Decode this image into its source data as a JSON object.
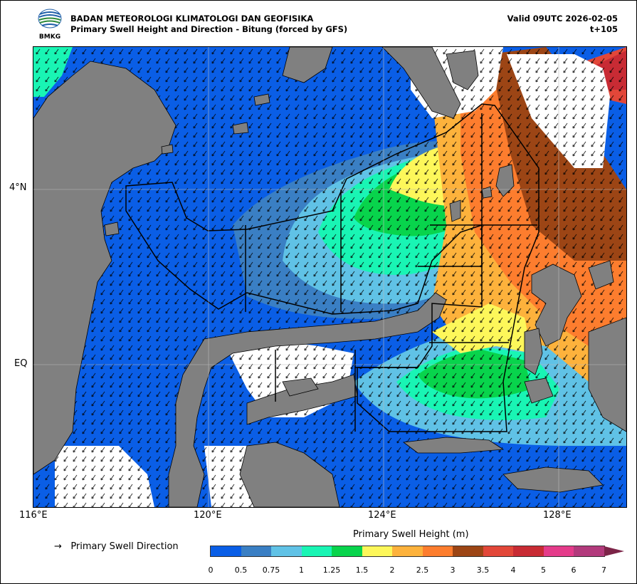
{
  "header": {
    "agency": "BADAN METEOROLOGI KLIMATOLOGI DAN GEOFISIKA",
    "subtitle": "Primary Swell Height and Direction - Bitung (forced by GFS)",
    "valid": "Valid 09UTC 2026-02-05",
    "lead": "t+105",
    "logo_text": "BMKG"
  },
  "axes": {
    "x_ticks": [
      "116°E",
      "120°E",
      "124°E",
      "128°E"
    ],
    "y_ticks": [
      "4°N",
      "EQ"
    ]
  },
  "legend": {
    "arrow_symbol": "→",
    "arrow_label": "Primary Swell Direction"
  },
  "colorbar": {
    "title": "Primary Swell Height (m)",
    "boundaries": [
      "0",
      "0.5",
      "0.75",
      "1",
      "1.25",
      "1.5",
      "2",
      "2.5",
      "3",
      "3.5",
      "4",
      "5",
      "6",
      "7"
    ],
    "colors": [
      "#0a5ee6",
      "#3a7fc4",
      "#60c2e6",
      "#19f5b4",
      "#08d44c",
      "#fdf75a",
      "#fdb23c",
      "#fd7d2e",
      "#9c4515",
      "#e24739",
      "#c82b34",
      "#e43b8a",
      "#b23a7c"
    ],
    "extend_color": "#7c2448"
  },
  "colors": {
    "land": "#808080",
    "sea_low": "#0a5ee6"
  }
}
